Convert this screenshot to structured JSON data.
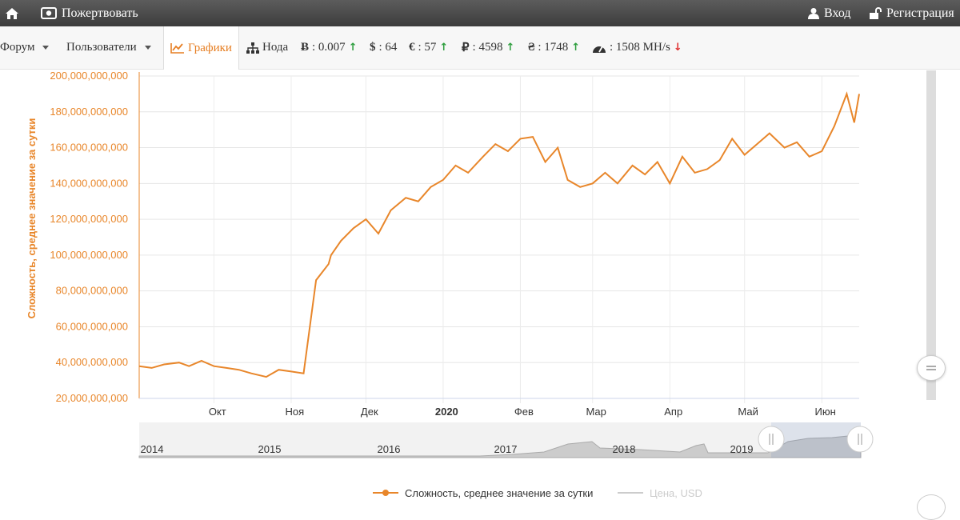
{
  "topbar": {
    "home_icon": "home-icon",
    "donate_label": "Пожертвовать",
    "login_label": "Вход",
    "register_label": "Регистрация"
  },
  "navbar": {
    "forum_label": "Форум",
    "users_label": "Пользователи",
    "charts_label": "Графики",
    "node_label": "Нода",
    "btc": {
      "symbol": "Ƀ",
      "value": ": 0.007",
      "trend": "up"
    },
    "usd": {
      "symbol": "$",
      "value": ": 64",
      "trend": "up"
    },
    "eur": {
      "symbol": "€",
      "value": ": 57",
      "trend": "up"
    },
    "rub": {
      "symbol": "₽",
      "value": ": 4598",
      "trend": "up"
    },
    "uah": {
      "symbol": "₴",
      "value": ": 1748",
      "trend": "up"
    },
    "hash": {
      "value": ": 1508 MH/s",
      "trend": "down"
    }
  },
  "colors": {
    "accent": "#e8862a",
    "up": "#2e9e3e",
    "down": "#e03030"
  },
  "chart_data": {
    "type": "line",
    "title": "",
    "ylabel": "Сложность, среднее значение за сутки",
    "xlabel": "",
    "ylim": [
      20000000000,
      200000000000
    ],
    "yticks": [
      "20,000,000,000",
      "40,000,000,000",
      "60,000,000,000",
      "80,000,000,000",
      "100,000,000,000",
      "120,000,000,000",
      "140,000,000,000",
      "160,000,000,000",
      "180,000,000,000",
      "200,000,000,000"
    ],
    "xticks": [
      "Окт",
      "Ноя",
      "Дек",
      "2020",
      "Фев",
      "Мар",
      "Апр",
      "Май",
      "Июн"
    ],
    "x_range": [
      "2019-09-15",
      "2020-06-30"
    ],
    "series": [
      {
        "name": "Сложность, среднее значение за сутки",
        "color": "#e8862a",
        "x": [
          "2019-09-15",
          "2019-09-20",
          "2019-09-25",
          "2019-10-01",
          "2019-10-05",
          "2019-10-10",
          "2019-10-15",
          "2019-10-20",
          "2019-10-25",
          "2019-10-30",
          "2019-11-05",
          "2019-11-10",
          "2019-11-15",
          "2019-11-20",
          "2019-11-25",
          "2019-11-30",
          "2019-12-01",
          "2019-12-05",
          "2019-12-10",
          "2019-12-15",
          "2019-12-20",
          "2019-12-25",
          "2019-12-31",
          "2020-01-05",
          "2020-01-10",
          "2020-01-15",
          "2020-01-20",
          "2020-01-25",
          "2020-01-31",
          "2020-02-05",
          "2020-02-10",
          "2020-02-15",
          "2020-02-20",
          "2020-02-25",
          "2020-03-01",
          "2020-03-05",
          "2020-03-10",
          "2020-03-15",
          "2020-03-20",
          "2020-03-25",
          "2020-03-31",
          "2020-04-05",
          "2020-04-10",
          "2020-04-15",
          "2020-04-20",
          "2020-04-25",
          "2020-04-30",
          "2020-05-05",
          "2020-05-10",
          "2020-05-15",
          "2020-05-20",
          "2020-05-25",
          "2020-05-31",
          "2020-06-05",
          "2020-06-10",
          "2020-06-15",
          "2020-06-20",
          "2020-06-25",
          "2020-06-28",
          "2020-06-30"
        ],
        "values": [
          38000000000.0,
          37000000000.0,
          39000000000.0,
          40000000000.0,
          38000000000.0,
          41000000000.0,
          38000000000.0,
          37000000000.0,
          36000000000.0,
          34000000000.0,
          32000000000.0,
          36000000000.0,
          35000000000.0,
          34000000000.0,
          86000000000.0,
          95000000000.0,
          100000000000.0,
          108000000000.0,
          115000000000.0,
          120000000000.0,
          112000000000.0,
          125000000000.0,
          132000000000.0,
          130000000000.0,
          138000000000.0,
          142000000000.0,
          150000000000.0,
          146000000000.0,
          155000000000.0,
          162000000000.0,
          158000000000.0,
          165000000000.0,
          166000000000.0,
          152000000000.0,
          160000000000.0,
          142000000000.0,
          138000000000.0,
          140000000000.0,
          146000000000.0,
          140000000000.0,
          150000000000.0,
          145000000000.0,
          152000000000.0,
          140000000000.0,
          155000000000.0,
          146000000000.0,
          148000000000.0,
          153000000000.0,
          165000000000.0,
          156000000000.0,
          162000000000.0,
          168000000000.0,
          160000000000.0,
          163000000000.0,
          155000000000.0,
          158000000000.0,
          172000000000.0,
          190000000000.0,
          174000000000.0,
          190000000000.0
        ]
      },
      {
        "name": "Цена, USD",
        "color": "#cccccc",
        "x": [],
        "values": []
      }
    ],
    "legend_position": "bottom-center",
    "grid": true
  },
  "navigator": {
    "years": [
      "2014",
      "2015",
      "2016",
      "2017",
      "2018",
      "2019"
    ]
  }
}
